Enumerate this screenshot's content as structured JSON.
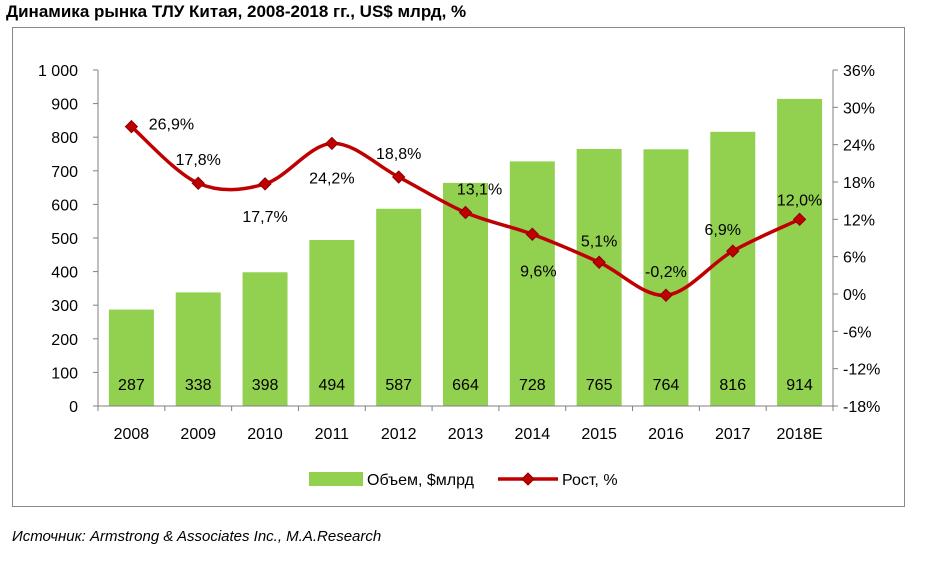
{
  "title": "Динамика рынка ТЛУ Китая, 2008-2018 гг., US$ млрд, %",
  "source": "Источник: Armstrong & Associates Inc., M.A.Research",
  "colors": {
    "bar": "#92d050",
    "line": "#c00000",
    "marker": "#c00000",
    "axis": "#7f7f7f",
    "frame": "#8a8a8a"
  },
  "chart_data": {
    "type": "bar",
    "categories": [
      "2008",
      "2009",
      "2010",
      "2011",
      "2012",
      "2013",
      "2014",
      "2015",
      "2016",
      "2017",
      "2018E"
    ],
    "series": [
      {
        "name": "Объем, $млрд",
        "type": "bar",
        "axis": "left",
        "values": [
          287,
          338,
          398,
          494,
          587,
          664,
          728,
          765,
          764,
          816,
          914
        ],
        "labels": [
          "287",
          "338",
          "398",
          "494",
          "587",
          "664",
          "728",
          "765",
          "764",
          "816",
          "914"
        ]
      },
      {
        "name": "Рост, %",
        "type": "line",
        "axis": "right",
        "values": [
          26.9,
          17.8,
          17.7,
          24.2,
          18.8,
          13.1,
          9.6,
          5.1,
          -0.2,
          6.9,
          12.0
        ],
        "labels": [
          "26,9%",
          "17,8%",
          "17,7%",
          "24,2%",
          "18,8%",
          "13,1%",
          "9,6%",
          "5,1%",
          "-0,2%",
          "6,9%",
          "12,0%"
        ]
      }
    ],
    "y_left": {
      "ylim": [
        0,
        1000
      ],
      "ticks": [
        0,
        100,
        200,
        300,
        400,
        500,
        600,
        700,
        800,
        900,
        1000
      ],
      "tick_labels": [
        "0",
        "100",
        "200",
        "300",
        "400",
        "500",
        "600",
        "700",
        "800",
        "900",
        "1 000"
      ]
    },
    "y_right": {
      "ylim": [
        -18,
        36
      ],
      "ticks": [
        -18,
        -12,
        -6,
        0,
        6,
        12,
        18,
        24,
        30,
        36
      ],
      "tick_labels": [
        "-18%",
        "-12%",
        "-6%",
        "0%",
        "6%",
        "12%",
        "18%",
        "24%",
        "30%",
        "36%"
      ]
    },
    "grid": false,
    "legend": "bottom"
  }
}
